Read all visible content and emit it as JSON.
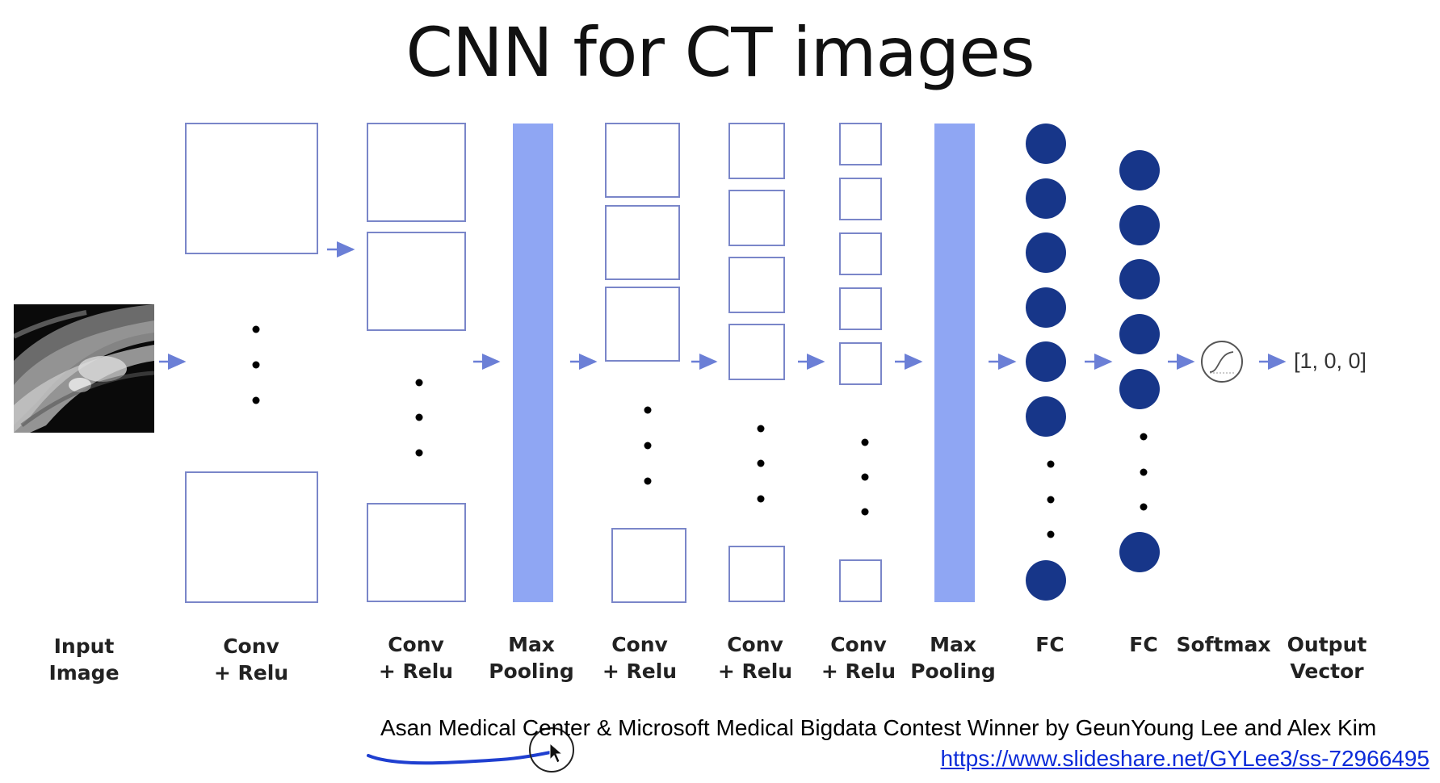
{
  "slide": {
    "title": "CNN for CT images"
  },
  "layers": [
    {
      "label_line1": "Input",
      "label_line2": "Image"
    },
    {
      "label_line1": "Conv",
      "label_line2": "+ Relu"
    },
    {
      "label_line1": "Conv",
      "label_line2": "+ Relu"
    },
    {
      "label_line1": "Max",
      "label_line2": "Pooling"
    },
    {
      "label_line1": "Conv",
      "label_line2": "+ Relu"
    },
    {
      "label_line1": "Conv",
      "label_line2": "+ Relu"
    },
    {
      "label_line1": "Conv",
      "label_line2": "+ Relu"
    },
    {
      "label_line1": "Max",
      "label_line2": "Pooling"
    },
    {
      "label_line1": "FC",
      "label_line2": ""
    },
    {
      "label_line1": "FC",
      "label_line2": ""
    },
    {
      "label_line1": "Softmax",
      "label_line2": ""
    },
    {
      "label_line1": "Output",
      "label_line2": "Vector"
    }
  ],
  "output_vector": "[1, 0, 0]",
  "credit": "Asan Medical Center & Microsoft Medical Bigdata Contest Winner by GeunYoung Lee and Alex Kim",
  "source_link": "https://www.slideshare.net/GYLee3/ss-72966495",
  "colors": {
    "box_stroke": "#7a86c9",
    "pool_fill": "#8fa6f3",
    "neuron_fill": "#173689",
    "arrow": "#6b7fd6",
    "annotation_ink": "#1f3fd0",
    "link": "#0b2bd9"
  },
  "icons": [
    "ct-scan-image",
    "sigmoid-icon",
    "mouse-cursor-icon"
  ]
}
